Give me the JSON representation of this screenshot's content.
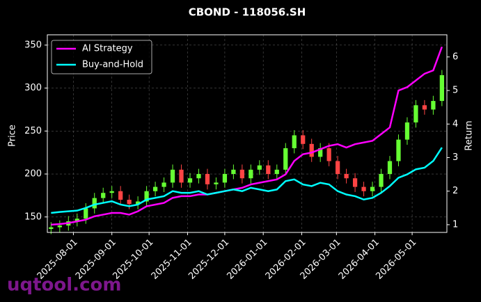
{
  "chart_data": {
    "type": "candlestick",
    "title": "CBOND - 118056.SH",
    "y_label": "Price",
    "y2_label": "Return",
    "watermark": "uqtool.com",
    "x": [
      "2025-07-14",
      "2025-07-21",
      "2025-07-28",
      "2025-08-04",
      "2025-08-11",
      "2025-08-18",
      "2025-08-25",
      "2025-09-01",
      "2025-09-08",
      "2025-09-15",
      "2025-09-22",
      "2025-09-29",
      "2025-10-06",
      "2025-10-13",
      "2025-10-20",
      "2025-10-27",
      "2025-11-03",
      "2025-11-10",
      "2025-11-17",
      "2025-11-24",
      "2025-12-01",
      "2025-12-08",
      "2025-12-15",
      "2025-12-22",
      "2025-12-29",
      "2026-01-05",
      "2026-01-12",
      "2026-01-19",
      "2026-01-26",
      "2026-02-02",
      "2026-02-09",
      "2026-02-16",
      "2026-02-23",
      "2026-03-02",
      "2026-03-09",
      "2026-03-16",
      "2026-03-23",
      "2026-03-30",
      "2026-04-06",
      "2026-04-13",
      "2026-04-20",
      "2026-04-27",
      "2026-05-04",
      "2026-05-11",
      "2026-05-18",
      "2026-05-25"
    ],
    "open": [
      136,
      138,
      140,
      145,
      148,
      160,
      172,
      178,
      180,
      170,
      165,
      168,
      180,
      185,
      190,
      205,
      190,
      195,
      200,
      188,
      190,
      200,
      205,
      195,
      205,
      210,
      200,
      205,
      230,
      245,
      235,
      220,
      230,
      215,
      200,
      195,
      185,
      180,
      185,
      200,
      215,
      240,
      260,
      280,
      275,
      285
    ],
    "high": [
      144,
      146,
      151,
      154,
      166,
      178,
      184,
      186,
      186,
      176,
      174,
      186,
      191,
      196,
      211,
      211,
      201,
      206,
      206,
      196,
      206,
      211,
      211,
      211,
      216,
      216,
      211,
      236,
      251,
      251,
      241,
      236,
      236,
      221,
      206,
      201,
      191,
      191,
      206,
      221,
      246,
      266,
      286,
      286,
      291,
      321
    ],
    "low": [
      130,
      132,
      134,
      139,
      142,
      154,
      166,
      172,
      164,
      159,
      159,
      162,
      174,
      179,
      184,
      184,
      184,
      189,
      182,
      182,
      184,
      194,
      189,
      189,
      199,
      194,
      194,
      199,
      224,
      229,
      214,
      214,
      209,
      194,
      189,
      179,
      174,
      174,
      179,
      194,
      209,
      234,
      254,
      269,
      269,
      279
    ],
    "close": [
      138,
      140,
      145,
      148,
      160,
      172,
      178,
      180,
      170,
      165,
      168,
      180,
      185,
      190,
      205,
      190,
      195,
      200,
      188,
      190,
      200,
      205,
      195,
      205,
      210,
      200,
      205,
      230,
      245,
      235,
      220,
      230,
      215,
      200,
      195,
      185,
      180,
      185,
      200,
      215,
      240,
      260,
      280,
      275,
      285,
      315
    ],
    "up_color": "#66ff33",
    "down_color": "#ff4444",
    "series": [
      {
        "name": "AI Strategy",
        "color": "#ff00ff",
        "axis": "y2",
        "values": [
          1.0,
          1.02,
          1.05,
          1.1,
          1.15,
          1.25,
          1.3,
          1.35,
          1.35,
          1.3,
          1.4,
          1.55,
          1.6,
          1.65,
          1.8,
          1.85,
          1.85,
          1.9,
          1.9,
          1.95,
          2.0,
          2.05,
          2.1,
          2.2,
          2.25,
          2.3,
          2.35,
          2.5,
          2.9,
          3.1,
          3.15,
          3.25,
          3.35,
          3.4,
          3.3,
          3.4,
          3.45,
          3.5,
          3.7,
          3.9,
          5.0,
          5.1,
          5.3,
          5.5,
          5.6,
          6.3
        ]
      },
      {
        "name": "Buy-and-Hold",
        "color": "#00ffff",
        "axis": "y2",
        "values": [
          1.35,
          1.38,
          1.4,
          1.42,
          1.5,
          1.6,
          1.65,
          1.7,
          1.6,
          1.55,
          1.6,
          1.75,
          1.8,
          1.85,
          2.0,
          1.95,
          1.95,
          2.0,
          1.9,
          1.95,
          2.0,
          2.05,
          2.0,
          2.1,
          2.05,
          2.0,
          2.05,
          2.3,
          2.35,
          2.2,
          2.15,
          2.25,
          2.2,
          2.0,
          1.9,
          1.85,
          1.75,
          1.8,
          1.95,
          2.15,
          2.4,
          2.5,
          2.65,
          2.7,
          2.9,
          3.3
        ]
      }
    ],
    "xlim": [
      "2025-07-11",
      "2026-05-29"
    ],
    "xticks": [
      "2025-08-01",
      "2025-09-01",
      "2025-10-01",
      "2025-11-01",
      "2025-12-01",
      "2026-01-01",
      "2026-02-01",
      "2026-03-01",
      "2026-04-01",
      "2026-05-01"
    ],
    "ylim": [
      132,
      362
    ],
    "yticks": [
      150,
      200,
      250,
      300,
      350
    ],
    "y2lim": [
      0.77,
      6.66
    ],
    "y2ticks": [
      1,
      2,
      3,
      4,
      5,
      6
    ],
    "grid": true,
    "legend": "upper left"
  }
}
